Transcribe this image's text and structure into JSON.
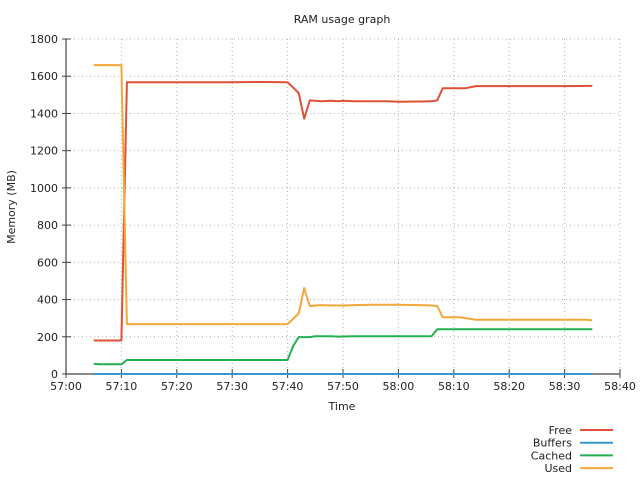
{
  "chart_data": {
    "type": "line",
    "title": "RAM usage graph",
    "xlabel": "Time",
    "ylabel": "Memory (MB)",
    "x_unit": "mm:ss",
    "xlim": [
      "57:00",
      "58:40"
    ],
    "ylim": [
      0,
      1800
    ],
    "x_ticks": [
      "57:00",
      "57:10",
      "57:20",
      "57:30",
      "57:40",
      "57:50",
      "58:00",
      "58:10",
      "58:20",
      "58:30",
      "58:40"
    ],
    "y_ticks": [
      0,
      200,
      400,
      600,
      800,
      1000,
      1200,
      1400,
      1600,
      1800
    ],
    "grid": true,
    "legend_position": "bottom-right",
    "series": [
      {
        "name": "Free",
        "color": "#e05038",
        "points": [
          [
            "57:05",
            180
          ],
          [
            "57:10",
            180
          ],
          [
            "57:11",
            1568
          ],
          [
            "57:20",
            1568
          ],
          [
            "57:30",
            1568
          ],
          [
            "57:35",
            1569
          ],
          [
            "57:40",
            1568
          ],
          [
            "57:42",
            1510
          ],
          [
            "57:43",
            1372
          ],
          [
            "57:44",
            1470
          ],
          [
            "57:46",
            1465
          ],
          [
            "57:48",
            1468
          ],
          [
            "57:49",
            1465
          ],
          [
            "57:50",
            1468
          ],
          [
            "57:52",
            1466
          ],
          [
            "57:55",
            1465
          ],
          [
            "57:58",
            1466
          ],
          [
            "58:00",
            1463
          ],
          [
            "58:04",
            1464
          ],
          [
            "58:06",
            1465
          ],
          [
            "58:07",
            1470
          ],
          [
            "58:08",
            1535
          ],
          [
            "58:12",
            1535
          ],
          [
            "58:14",
            1547
          ],
          [
            "58:20",
            1547
          ],
          [
            "58:30",
            1547
          ],
          [
            "58:35",
            1548
          ]
        ]
      },
      {
        "name": "Buffers",
        "color": "#3399cc",
        "points": [
          [
            "57:05",
            0
          ],
          [
            "57:10",
            0
          ],
          [
            "57:20",
            0
          ],
          [
            "57:30",
            0
          ],
          [
            "57:40",
            0
          ],
          [
            "57:50",
            0
          ],
          [
            "58:00",
            0
          ],
          [
            "58:10",
            0
          ],
          [
            "58:20",
            0
          ],
          [
            "58:30",
            0
          ],
          [
            "58:35",
            0
          ]
        ]
      },
      {
        "name": "Cached",
        "color": "#22b050",
        "points": [
          [
            "57:05",
            55
          ],
          [
            "57:06",
            52
          ],
          [
            "57:10",
            52
          ],
          [
            "57:11",
            75
          ],
          [
            "57:20",
            75
          ],
          [
            "57:30",
            75
          ],
          [
            "57:40",
            75
          ],
          [
            "57:41",
            150
          ],
          [
            "57:42",
            198
          ],
          [
            "57:44",
            198
          ],
          [
            "57:45",
            203
          ],
          [
            "57:48",
            203
          ],
          [
            "57:49",
            201
          ],
          [
            "57:52",
            203
          ],
          [
            "58:00",
            203
          ],
          [
            "58:06",
            203
          ],
          [
            "58:07",
            240
          ],
          [
            "58:10",
            240
          ],
          [
            "58:20",
            240
          ],
          [
            "58:30",
            240
          ],
          [
            "58:35",
            240
          ]
        ]
      },
      {
        "name": "Used",
        "color": "#f5a83a",
        "points": [
          [
            "57:05",
            1660
          ],
          [
            "57:10",
            1660
          ],
          [
            "57:11",
            268
          ],
          [
            "57:20",
            268
          ],
          [
            "57:30",
            268
          ],
          [
            "57:40",
            268
          ],
          [
            "57:42",
            325
          ],
          [
            "57:43",
            462
          ],
          [
            "57:44",
            365
          ],
          [
            "57:46",
            370
          ],
          [
            "57:48",
            368
          ],
          [
            "57:50",
            368
          ],
          [
            "57:52",
            370
          ],
          [
            "57:55",
            372
          ],
          [
            "58:00",
            372
          ],
          [
            "58:04",
            370
          ],
          [
            "58:06",
            368
          ],
          [
            "58:07",
            365
          ],
          [
            "58:08",
            305
          ],
          [
            "58:11",
            305
          ],
          [
            "58:14",
            292
          ],
          [
            "58:20",
            292
          ],
          [
            "58:30",
            292
          ],
          [
            "58:34",
            292
          ],
          [
            "58:35",
            288
          ]
        ]
      }
    ]
  }
}
